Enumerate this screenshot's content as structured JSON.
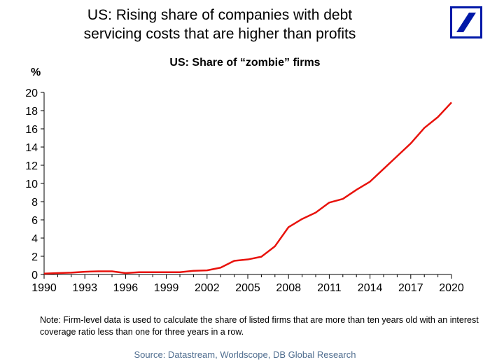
{
  "header": {
    "headline_line1": "US: Rising share of companies with debt",
    "headline_line2": "servicing costs that are higher than profits"
  },
  "logo": {
    "icon": "deutsche-bank-logo-icon",
    "color": "#0018a8"
  },
  "footer": {
    "note": "Note: Firm-level data is used to calculate the share of listed firms that are more than ten years old with an interest coverage ratio less than one for three years in a row.",
    "source": "Source: Datastream, Worldscope, DB Global Research"
  },
  "chart_data": {
    "type": "line",
    "title": "US: Share of “zombie” firms",
    "ylabel": "%",
    "xlabel": "",
    "ylim": [
      0,
      20
    ],
    "xlim": [
      1990,
      2020
    ],
    "y_ticks": [
      0,
      2,
      4,
      6,
      8,
      10,
      12,
      14,
      16,
      18,
      20
    ],
    "x_ticks": [
      1990,
      1993,
      1996,
      1999,
      2002,
      2005,
      2008,
      2011,
      2014,
      2017,
      2020
    ],
    "grid": false,
    "series": [
      {
        "color": "#e8120c",
        "x": [
          1990,
          1991,
          1992,
          1993,
          1994,
          1995,
          1996,
          1997,
          1998,
          1999,
          2000,
          2001,
          2002,
          2003,
          2004,
          2005,
          2006,
          2007,
          2008,
          2009,
          2010,
          2011,
          2012,
          2013,
          2014,
          2015,
          2016,
          2017,
          2018,
          2019,
          2020
        ],
        "y": [
          0.1,
          0.15,
          0.2,
          0.3,
          0.35,
          0.35,
          0.15,
          0.25,
          0.25,
          0.25,
          0.25,
          0.4,
          0.45,
          0.75,
          1.5,
          1.65,
          1.95,
          3.1,
          5.2,
          6.1,
          6.8,
          7.9,
          8.3,
          9.3,
          10.2,
          11.6,
          13.0,
          14.4,
          16.1,
          17.3,
          18.9
        ]
      }
    ]
  }
}
